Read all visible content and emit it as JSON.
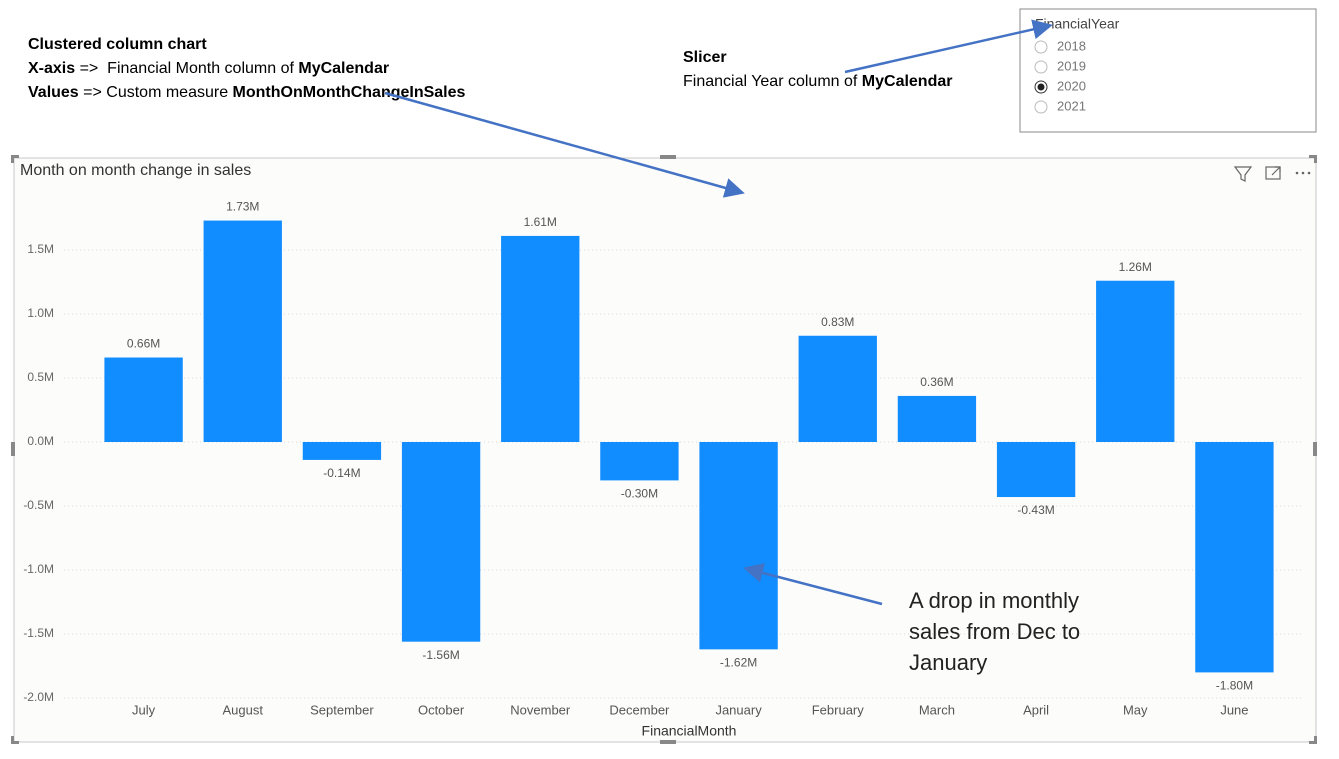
{
  "chart_data": {
    "type": "bar",
    "title": "Month on month change in sales",
    "x_label": "FinancialMonth",
    "categories": [
      "July",
      "August",
      "September",
      "October",
      "November",
      "December",
      "January",
      "February",
      "March",
      "April",
      "May",
      "June"
    ],
    "values": [
      660000,
      1730000,
      -140000,
      -1560000,
      1610000,
      -300000,
      -1620000,
      830000,
      360000,
      -430000,
      1260000,
      -1800000
    ],
    "value_labels": [
      "0.66M",
      "1.73M",
      "-0.14M",
      "-1.56M",
      "1.61M",
      "-0.30M",
      "-1.62M",
      "0.83M",
      "0.36M",
      "-0.43M",
      "1.26M",
      "-1.80M"
    ],
    "color": "#118dff",
    "ylim": [
      -2000000,
      1950000
    ],
    "yticks": [
      {
        "value": -2000000,
        "label": "-2.0M"
      },
      {
        "value": -1500000,
        "label": "-1.5M"
      },
      {
        "value": -1000000,
        "label": "-1.0M"
      },
      {
        "value": -500000,
        "label": "-0.5M"
      },
      {
        "value": 0,
        "label": "0.0M"
      },
      {
        "value": 500000,
        "label": "0.5M"
      },
      {
        "value": 1000000,
        "label": "1.0M"
      },
      {
        "value": 1500000,
        "label": "1.5M"
      }
    ],
    "grid": true
  },
  "notes": {
    "chart": {
      "heading": "Clustered column chart",
      "x_key": "X-axis",
      "x_text": " =>  Financial Month column of ",
      "x_table": "MyCalendar",
      "values_key": "Values",
      "values_text": " => Custom measure ",
      "values_measure": "MonthOnMonthChangeInSales"
    },
    "slicer": {
      "heading": "Slicer",
      "text": "Financial Year column of ",
      "table": "MyCalendar"
    },
    "drop": "A drop in monthly sales from Dec to January"
  },
  "slicer": {
    "title": "FinancialYear",
    "options": [
      "2018",
      "2019",
      "2020",
      "2021"
    ],
    "selected": "2020"
  }
}
